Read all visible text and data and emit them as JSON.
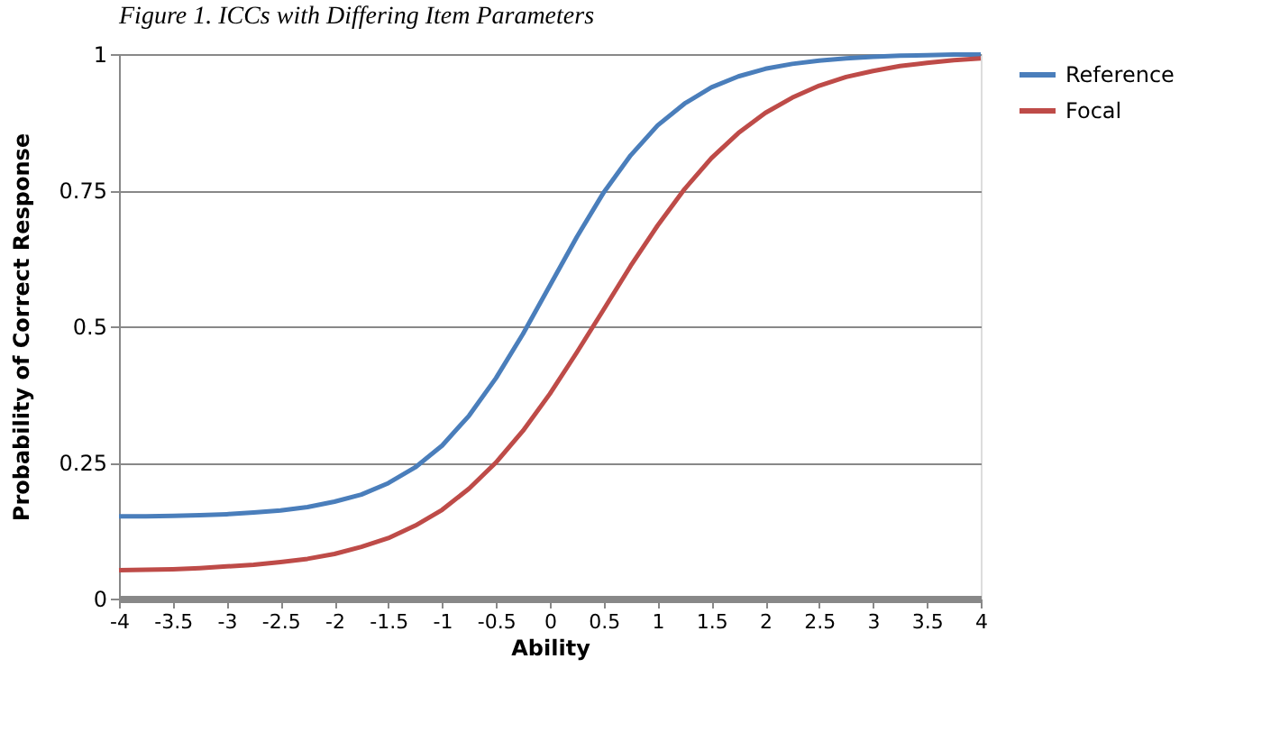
{
  "chart_data": {
    "type": "line",
    "title": "Figure 1. ICCs with Differing Item Parameters",
    "xlabel": "Ability",
    "ylabel": "Probability of Correct Response",
    "x": [
      -4,
      -3.75,
      -3.5,
      -3.25,
      -3,
      -2.75,
      -2.5,
      -2.25,
      -2,
      -1.75,
      -1.5,
      -1.25,
      -1,
      -0.75,
      -0.5,
      -0.25,
      0,
      0.25,
      0.5,
      0.75,
      1,
      1.25,
      1.5,
      1.75,
      2,
      2.25,
      2.5,
      2.75,
      3,
      3.25,
      3.5,
      3.75,
      4
    ],
    "series": [
      {
        "name": "Reference",
        "color": "#4a7ebb",
        "values": [
          0.151,
          0.151,
          0.152,
          0.153,
          0.155,
          0.158,
          0.162,
          0.168,
          0.178,
          0.191,
          0.212,
          0.241,
          0.281,
          0.336,
          0.405,
          0.486,
          0.575,
          0.664,
          0.746,
          0.814,
          0.869,
          0.909,
          0.939,
          0.959,
          0.973,
          0.982,
          0.988,
          0.992,
          0.995,
          0.997,
          0.998,
          0.999,
          0.999
        ]
      },
      {
        "name": "Focal",
        "color": "#be4b48",
        "values": [
          0.052,
          0.053,
          0.054,
          0.056,
          0.059,
          0.062,
          0.067,
          0.073,
          0.082,
          0.095,
          0.111,
          0.134,
          0.163,
          0.202,
          0.25,
          0.308,
          0.376,
          0.452,
          0.531,
          0.611,
          0.685,
          0.752,
          0.809,
          0.855,
          0.892,
          0.92,
          0.942,
          0.958,
          0.969,
          0.978,
          0.984,
          0.989,
          0.992
        ]
      }
    ],
    "xlim": [
      -4,
      4
    ],
    "xticks": [
      -4,
      -3.5,
      -3,
      -2.5,
      -2,
      -1.5,
      -1,
      -0.5,
      0,
      0.5,
      1,
      1.5,
      2,
      2.5,
      3,
      3.5,
      4
    ],
    "ylim": [
      0,
      1
    ],
    "yticks": [
      0,
      0.25,
      0.5,
      0.75,
      1
    ],
    "grid": "y",
    "legend": "right",
    "marker": "none",
    "line_style": "solid"
  }
}
